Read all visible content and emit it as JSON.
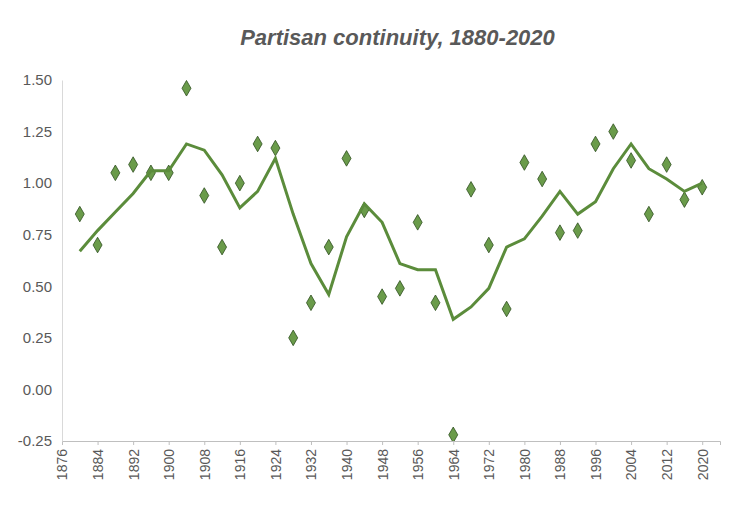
{
  "chart_data": {
    "type": "scatter",
    "title": "Partisan continuity, 1880-2020",
    "x": [
      1880,
      1884,
      1888,
      1892,
      1896,
      1900,
      1904,
      1908,
      1912,
      1916,
      1920,
      1924,
      1928,
      1932,
      1936,
      1940,
      1944,
      1948,
      1952,
      1956,
      1960,
      1964,
      1968,
      1972,
      1976,
      1980,
      1984,
      1988,
      1992,
      1996,
      2000,
      2004,
      2008,
      2012,
      2016,
      2020
    ],
    "series": [
      {
        "type": "scatter",
        "marker": "diamond",
        "color": "#6a9b4a",
        "values": [
          0.85,
          0.7,
          1.05,
          1.09,
          1.05,
          1.05,
          1.46,
          0.94,
          0.69,
          1.0,
          1.19,
          1.17,
          0.25,
          0.42,
          0.69,
          1.12,
          0.87,
          0.45,
          0.49,
          0.81,
          0.42,
          -0.22,
          0.97,
          0.7,
          0.39,
          1.1,
          1.02,
          0.76,
          0.77,
          1.19,
          1.25,
          1.11,
          0.85,
          1.09,
          0.92,
          0.98
        ]
      },
      {
        "type": "line",
        "line_style": "solid",
        "color": "#5b8c3b",
        "values": [
          0.67,
          0.77,
          0.86,
          0.95,
          1.06,
          1.06,
          1.19,
          1.16,
          1.04,
          0.88,
          0.96,
          1.12,
          0.85,
          0.61,
          0.46,
          0.74,
          0.9,
          0.81,
          0.61,
          0.58,
          0.58,
          0.34,
          0.4,
          0.49,
          0.69,
          0.73,
          0.84,
          0.96,
          0.85,
          0.91,
          1.07,
          1.19,
          1.07,
          1.02,
          0.96,
          1.0
        ]
      }
    ],
    "xlim": [
      1876,
      2024
    ],
    "xticks": [
      1876,
      1884,
      1892,
      1900,
      1908,
      1916,
      1924,
      1932,
      1940,
      1948,
      1956,
      1964,
      1972,
      1980,
      1988,
      1996,
      2004,
      2012,
      2020
    ],
    "ylim": [
      -0.25,
      1.5
    ],
    "yticks": [
      {
        "value": -0.25,
        "label": "-0.25"
      },
      {
        "value": 0,
        "label": "0.00"
      },
      {
        "value": 0.25,
        "label": "0.25"
      },
      {
        "value": 0.5,
        "label": "0.50"
      },
      {
        "value": 0.75,
        "label": "0.75"
      },
      {
        "value": 1,
        "label": "1.00"
      },
      {
        "value": 1.25,
        "label": "1.25"
      },
      {
        "value": 1.5,
        "label": "1.50"
      }
    ],
    "grid": false
  }
}
